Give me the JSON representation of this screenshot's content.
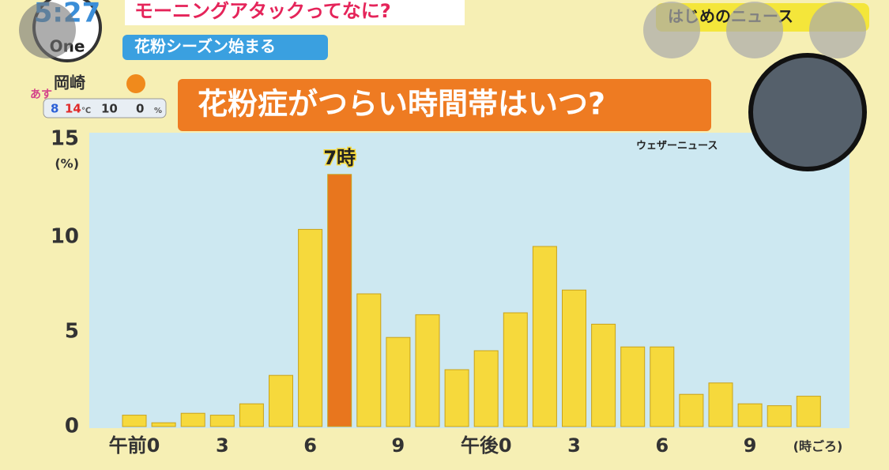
{
  "header": {
    "clock": "5:27",
    "logo": "One",
    "headline": "モーニングアタックってなに?",
    "subhead": "花粉シーズン始まる",
    "corner": "はじめのニュース"
  },
  "weather": {
    "day": "あす",
    "city": "岡崎",
    "low": "8",
    "high": "14",
    "temp_unit": "℃",
    "pop_am": "10",
    "pop_pm": "0",
    "pop_unit": "%"
  },
  "chart_data": {
    "type": "bar",
    "title": "花粉症がつらい時間帯はいつ?",
    "source": "ウェザーニュース",
    "y_label": "(%)",
    "x_label": "(時ごろ)",
    "annotation": "7時",
    "categories": [
      "午前0",
      null,
      null,
      "3",
      null,
      null,
      "6",
      null,
      null,
      "9",
      null,
      null,
      "午後0",
      null,
      null,
      "3",
      null,
      null,
      "6",
      null,
      null,
      "9",
      null,
      null
    ],
    "values": [
      0.6,
      0.2,
      0.7,
      0.6,
      1.2,
      2.7,
      10.4,
      13.3,
      7.0,
      4.7,
      5.9,
      3.0,
      4.0,
      6.0,
      9.5,
      7.2,
      5.4,
      4.2,
      4.2,
      1.7,
      2.3,
      1.2,
      1.1,
      1.6
    ],
    "colors": [
      "#f6d93c",
      "#f6d93c",
      "#f6d93c",
      "#f6d93c",
      "#f6d93c",
      "#f6d93c",
      "#f6d93c",
      "#e8761e",
      "#f6d93c",
      "#f6d93c",
      "#f6d93c",
      "#f6d93c",
      "#f6d93c",
      "#f6d93c",
      "#f6d93c",
      "#f6d93c",
      "#f6d93c",
      "#f6d93c",
      "#f6d93c",
      "#f6d93c",
      "#f6d93c",
      "#f6d93c",
      "#f6d93c",
      "#f6d93c"
    ],
    "ylim": [
      0,
      15
    ],
    "yticks": [
      0,
      5,
      10,
      15
    ]
  }
}
